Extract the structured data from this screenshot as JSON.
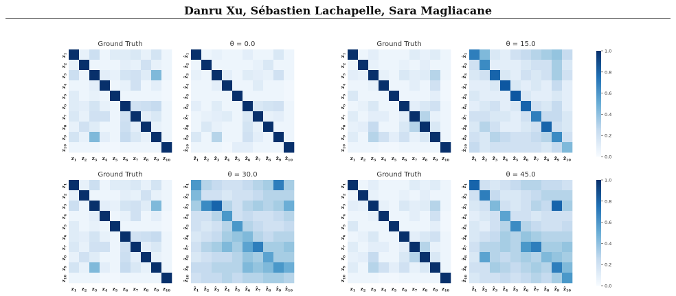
{
  "header": {
    "authors": "Danru Xu,  Sébastien Lachapelle,  Sara Magliacane"
  },
  "colors": {
    "low": "#f7fbff",
    "high": "#08306b",
    "colormap": "Blues"
  },
  "chart_data": [
    {
      "type": "heatmap",
      "title": "Ground Truth",
      "row_labels": [
        "z1",
        "z2",
        "z3",
        "z4",
        "z5",
        "z6",
        "z7",
        "z8",
        "z9",
        "z10"
      ],
      "col_labels": [
        "z1",
        "z2",
        "z3",
        "z4",
        "z5",
        "z6",
        "z7",
        "z8",
        "z9",
        "z10"
      ],
      "vmin": 0,
      "vmax": 1,
      "values": [
        [
          1.0,
          0.08,
          0.22,
          0.05,
          0.12,
          0.12,
          0.15,
          0.08,
          0.18,
          0.05
        ],
        [
          0.08,
          1.0,
          0.05,
          0.05,
          0.05,
          0.1,
          0.08,
          0.2,
          0.08,
          0.05
        ],
        [
          0.22,
          0.05,
          1.0,
          0.1,
          0.08,
          0.18,
          0.2,
          0.12,
          0.45,
          0.05
        ],
        [
          0.05,
          0.05,
          0.1,
          1.0,
          0.05,
          0.08,
          0.2,
          0.05,
          0.1,
          0.03
        ],
        [
          0.12,
          0.05,
          0.08,
          0.05,
          1.0,
          0.05,
          0.05,
          0.05,
          0.05,
          0.03
        ],
        [
          0.12,
          0.1,
          0.18,
          0.08,
          0.05,
          1.0,
          0.2,
          0.22,
          0.25,
          0.05
        ],
        [
          0.15,
          0.08,
          0.2,
          0.2,
          0.05,
          0.2,
          1.0,
          0.1,
          0.15,
          0.05
        ],
        [
          0.08,
          0.2,
          0.12,
          0.05,
          0.05,
          0.22,
          0.1,
          1.0,
          0.08,
          0.05
        ],
        [
          0.18,
          0.08,
          0.45,
          0.1,
          0.05,
          0.25,
          0.15,
          0.08,
          1.0,
          0.05
        ],
        [
          0.05,
          0.05,
          0.05,
          0.03,
          0.03,
          0.05,
          0.05,
          0.05,
          0.05,
          1.0
        ]
      ]
    },
    {
      "type": "heatmap",
      "title": "θ = 0.0",
      "row_labels": [
        "ẑ1",
        "ẑ2",
        "ẑ3",
        "ẑ4",
        "ẑ5",
        "ẑ6",
        "ẑ7",
        "ẑ8",
        "ẑ9",
        "ẑ10"
      ],
      "col_labels": [
        "ẑ1",
        "ẑ2",
        "ẑ3",
        "ẑ4",
        "ẑ5",
        "ẑ6",
        "ẑ7",
        "ẑ8",
        "ẑ9",
        "ẑ10"
      ],
      "vmin": 0,
      "vmax": 1,
      "values": [
        [
          1.0,
          0.05,
          0.08,
          0.05,
          0.05,
          0.1,
          0.05,
          0.05,
          0.15,
          0.05
        ],
        [
          0.05,
          1.0,
          0.05,
          0.05,
          0.05,
          0.05,
          0.08,
          0.15,
          0.05,
          0.05
        ],
        [
          0.08,
          0.05,
          1.0,
          0.1,
          0.05,
          0.12,
          0.1,
          0.08,
          0.2,
          0.05
        ],
        [
          0.05,
          0.05,
          0.1,
          1.0,
          0.05,
          0.05,
          0.12,
          0.05,
          0.05,
          0.03
        ],
        [
          0.05,
          0.05,
          0.05,
          0.05,
          1.0,
          0.05,
          0.05,
          0.05,
          0.05,
          0.03
        ],
        [
          0.1,
          0.05,
          0.12,
          0.05,
          0.05,
          1.0,
          0.15,
          0.18,
          0.2,
          0.05
        ],
        [
          0.05,
          0.08,
          0.1,
          0.12,
          0.05,
          0.15,
          1.0,
          0.08,
          0.1,
          0.05
        ],
        [
          0.05,
          0.15,
          0.08,
          0.05,
          0.05,
          0.18,
          0.08,
          1.0,
          0.05,
          0.05
        ],
        [
          0.15,
          0.05,
          0.3,
          0.05,
          0.05,
          0.2,
          0.1,
          0.05,
          1.0,
          0.05
        ],
        [
          0.05,
          0.05,
          0.05,
          0.03,
          0.1,
          0.1,
          0.05,
          0.05,
          0.05,
          1.0
        ]
      ]
    },
    {
      "type": "heatmap",
      "title": "Ground Truth",
      "row_labels": [
        "z1",
        "z2",
        "z3",
        "z4",
        "z5",
        "z6",
        "z7",
        "z8",
        "z9",
        "z10"
      ],
      "col_labels": [
        "z1",
        "z2",
        "z3",
        "z4",
        "z5",
        "z6",
        "z7",
        "z8",
        "z9",
        "z10"
      ],
      "vmin": 0,
      "vmax": 1,
      "values": [
        [
          1.0,
          0.05,
          0.1,
          0.05,
          0.05,
          0.05,
          0.12,
          0.08,
          0.12,
          0.05
        ],
        [
          0.05,
          1.0,
          0.08,
          0.05,
          0.05,
          0.08,
          0.05,
          0.1,
          0.05,
          0.05
        ],
        [
          0.1,
          0.08,
          1.0,
          0.08,
          0.05,
          0.15,
          0.1,
          0.12,
          0.3,
          0.05
        ],
        [
          0.05,
          0.05,
          0.08,
          1.0,
          0.05,
          0.05,
          0.1,
          0.05,
          0.2,
          0.03
        ],
        [
          0.15,
          0.05,
          0.05,
          0.05,
          1.0,
          0.05,
          0.05,
          0.05,
          0.1,
          0.03
        ],
        [
          0.05,
          0.08,
          0.15,
          0.05,
          0.05,
          1.0,
          0.1,
          0.15,
          0.2,
          0.05
        ],
        [
          0.12,
          0.05,
          0.1,
          0.1,
          0.05,
          0.1,
          1.0,
          0.3,
          0.08,
          0.05
        ],
        [
          0.08,
          0.1,
          0.25,
          0.05,
          0.05,
          0.15,
          0.3,
          1.0,
          0.15,
          0.05
        ],
        [
          0.12,
          0.05,
          0.3,
          0.2,
          0.1,
          0.2,
          0.08,
          0.15,
          1.0,
          0.05
        ],
        [
          0.05,
          0.05,
          0.05,
          0.03,
          0.03,
          0.05,
          0.05,
          0.05,
          0.05,
          1.0
        ]
      ]
    },
    {
      "type": "heatmap",
      "title": "θ = 15.0",
      "row_labels": [
        "ẑ1",
        "ẑ2",
        "ẑ3",
        "ẑ4",
        "ẑ5",
        "ẑ6",
        "ẑ7",
        "ẑ8",
        "ẑ9",
        "ẑ10"
      ],
      "col_labels": [
        "ẑ1",
        "ẑ2",
        "ẑ3",
        "ẑ4",
        "ẑ5",
        "ẑ6",
        "ẑ7",
        "ẑ8",
        "ẑ9",
        "ẑ10"
      ],
      "vmin": 0,
      "vmax": 1,
      "values": [
        [
          0.7,
          0.45,
          0.15,
          0.1,
          0.2,
          0.25,
          0.3,
          0.35,
          0.4,
          0.25
        ],
        [
          0.2,
          0.65,
          0.1,
          0.1,
          0.1,
          0.15,
          0.2,
          0.2,
          0.35,
          0.15
        ],
        [
          0.15,
          0.2,
          0.8,
          0.15,
          0.1,
          0.2,
          0.15,
          0.2,
          0.35,
          0.2
        ],
        [
          0.1,
          0.1,
          0.15,
          0.85,
          0.15,
          0.1,
          0.15,
          0.1,
          0.25,
          0.1
        ],
        [
          0.15,
          0.1,
          0.1,
          0.1,
          0.85,
          0.15,
          0.1,
          0.1,
          0.15,
          0.1
        ],
        [
          0.1,
          0.15,
          0.2,
          0.1,
          0.15,
          0.8,
          0.2,
          0.15,
          0.25,
          0.1
        ],
        [
          0.2,
          0.2,
          0.15,
          0.15,
          0.1,
          0.2,
          0.7,
          0.25,
          0.25,
          0.15
        ],
        [
          0.15,
          0.3,
          0.2,
          0.1,
          0.1,
          0.15,
          0.2,
          0.8,
          0.2,
          0.15
        ],
        [
          0.2,
          0.15,
          0.3,
          0.25,
          0.2,
          0.2,
          0.25,
          0.3,
          0.65,
          0.2
        ],
        [
          0.25,
          0.15,
          0.2,
          0.2,
          0.2,
          0.2,
          0.2,
          0.15,
          0.25,
          0.45
        ]
      ]
    },
    {
      "type": "heatmap",
      "title": "Ground Truth",
      "row_labels": [
        "z1",
        "z2",
        "z3",
        "z4",
        "z5",
        "z6",
        "z7",
        "z8",
        "z9",
        "z10"
      ],
      "col_labels": [
        "z1",
        "z2",
        "z3",
        "z4",
        "z5",
        "z6",
        "z7",
        "z8",
        "z9",
        "z10"
      ],
      "vmin": 0,
      "vmax": 1,
      "values": [
        [
          1.0,
          0.08,
          0.22,
          0.05,
          0.12,
          0.12,
          0.15,
          0.08,
          0.18,
          0.05
        ],
        [
          0.08,
          1.0,
          0.05,
          0.05,
          0.05,
          0.1,
          0.08,
          0.2,
          0.08,
          0.05
        ],
        [
          0.22,
          0.05,
          1.0,
          0.1,
          0.08,
          0.18,
          0.2,
          0.12,
          0.45,
          0.05
        ],
        [
          0.05,
          0.05,
          0.1,
          1.0,
          0.05,
          0.08,
          0.2,
          0.05,
          0.1,
          0.03
        ],
        [
          0.12,
          0.05,
          0.08,
          0.05,
          1.0,
          0.05,
          0.05,
          0.05,
          0.05,
          0.03
        ],
        [
          0.12,
          0.1,
          0.18,
          0.08,
          0.05,
          1.0,
          0.2,
          0.22,
          0.25,
          0.05
        ],
        [
          0.15,
          0.08,
          0.2,
          0.2,
          0.05,
          0.2,
          1.0,
          0.1,
          0.15,
          0.05
        ],
        [
          0.08,
          0.2,
          0.12,
          0.05,
          0.05,
          0.22,
          0.1,
          1.0,
          0.08,
          0.05
        ],
        [
          0.18,
          0.08,
          0.45,
          0.1,
          0.05,
          0.25,
          0.15,
          0.08,
          1.0,
          0.05
        ],
        [
          0.05,
          0.05,
          0.05,
          0.03,
          0.03,
          0.05,
          0.05,
          0.05,
          0.05,
          1.0
        ]
      ]
    },
    {
      "type": "heatmap",
      "title": "θ = 30.0",
      "row_labels": [
        "ẑ1",
        "ẑ2",
        "ẑ3",
        "ẑ4",
        "ẑ5",
        "ẑ6",
        "ẑ7",
        "ẑ8",
        "ẑ9",
        "ẑ10"
      ],
      "col_labels": [
        "ẑ1",
        "ẑ2",
        "ẑ3",
        "ẑ4",
        "ẑ5",
        "ẑ6",
        "ẑ7",
        "ẑ8",
        "ẑ9",
        "ẑ10"
      ],
      "vmin": 0,
      "vmax": 1,
      "values": [
        [
          0.6,
          0.3,
          0.25,
          0.2,
          0.2,
          0.25,
          0.3,
          0.35,
          0.7,
          0.35
        ],
        [
          0.45,
          0.2,
          0.2,
          0.15,
          0.2,
          0.2,
          0.25,
          0.3,
          0.3,
          0.3
        ],
        [
          0.35,
          0.65,
          0.8,
          0.3,
          0.2,
          0.3,
          0.35,
          0.3,
          0.35,
          0.5
        ],
        [
          0.2,
          0.2,
          0.3,
          0.6,
          0.2,
          0.25,
          0.2,
          0.2,
          0.25,
          0.3
        ],
        [
          0.2,
          0.15,
          0.2,
          0.3,
          0.6,
          0.3,
          0.25,
          0.2,
          0.2,
          0.25
        ],
        [
          0.15,
          0.2,
          0.25,
          0.35,
          0.4,
          0.45,
          0.3,
          0.25,
          0.3,
          0.3
        ],
        [
          0.2,
          0.3,
          0.35,
          0.45,
          0.35,
          0.55,
          0.7,
          0.35,
          0.35,
          0.4
        ],
        [
          0.15,
          0.2,
          0.25,
          0.25,
          0.3,
          0.4,
          0.35,
          0.55,
          0.35,
          0.35
        ],
        [
          0.25,
          0.25,
          0.3,
          0.3,
          0.3,
          0.45,
          0.4,
          0.45,
          0.6,
          0.5
        ],
        [
          0.2,
          0.25,
          0.25,
          0.3,
          0.25,
          0.3,
          0.3,
          0.35,
          0.35,
          0.3
        ]
      ]
    },
    {
      "type": "heatmap",
      "title": "Ground Truth",
      "row_labels": [
        "z1",
        "z2",
        "z3",
        "z4",
        "z5",
        "z6",
        "z7",
        "z8",
        "z9",
        "z10"
      ],
      "col_labels": [
        "z1",
        "z2",
        "z3",
        "z4",
        "z5",
        "z6",
        "z7",
        "z8",
        "z9",
        "z10"
      ],
      "vmin": 0,
      "vmax": 1,
      "values": [
        [
          1.0,
          0.05,
          0.1,
          0.05,
          0.05,
          0.05,
          0.12,
          0.08,
          0.12,
          0.05
        ],
        [
          0.05,
          1.0,
          0.08,
          0.05,
          0.05,
          0.08,
          0.05,
          0.1,
          0.05,
          0.05
        ],
        [
          0.1,
          0.08,
          1.0,
          0.08,
          0.05,
          0.15,
          0.1,
          0.12,
          0.3,
          0.05
        ],
        [
          0.05,
          0.05,
          0.08,
          1.0,
          0.05,
          0.05,
          0.1,
          0.05,
          0.2,
          0.03
        ],
        [
          0.15,
          0.05,
          0.05,
          0.05,
          1.0,
          0.05,
          0.05,
          0.05,
          0.1,
          0.03
        ],
        [
          0.05,
          0.08,
          0.15,
          0.05,
          0.05,
          1.0,
          0.1,
          0.15,
          0.2,
          0.05
        ],
        [
          0.12,
          0.05,
          0.1,
          0.1,
          0.05,
          0.1,
          1.0,
          0.3,
          0.08,
          0.05
        ],
        [
          0.08,
          0.1,
          0.25,
          0.05,
          0.05,
          0.15,
          0.3,
          1.0,
          0.15,
          0.05
        ],
        [
          0.12,
          0.05,
          0.3,
          0.2,
          0.1,
          0.2,
          0.08,
          0.15,
          1.0,
          0.05
        ],
        [
          0.05,
          0.05,
          0.05,
          0.03,
          0.03,
          0.05,
          0.05,
          0.05,
          0.05,
          1.0
        ]
      ]
    },
    {
      "type": "heatmap",
      "title": "θ = 45.0",
      "row_labels": [
        "ẑ1",
        "ẑ2",
        "ẑ3",
        "ẑ4",
        "ẑ5",
        "ẑ6",
        "ẑ7",
        "ẑ8",
        "ẑ9",
        "ẑ10"
      ],
      "col_labels": [
        "ẑ1",
        "ẑ2",
        "ẑ3",
        "ẑ4",
        "ẑ5",
        "ẑ6",
        "ẑ7",
        "ẑ8",
        "ẑ9",
        "ẑ10"
      ],
      "vmin": 0,
      "vmax": 1,
      "values": [
        [
          0.8,
          0.2,
          0.15,
          0.2,
          0.25,
          0.3,
          0.3,
          0.25,
          0.25,
          0.2
        ],
        [
          0.2,
          0.7,
          0.25,
          0.15,
          0.15,
          0.2,
          0.25,
          0.3,
          0.3,
          0.3
        ],
        [
          0.15,
          0.2,
          0.45,
          0.2,
          0.15,
          0.2,
          0.3,
          0.25,
          0.8,
          0.35
        ],
        [
          0.1,
          0.15,
          0.2,
          0.55,
          0.2,
          0.2,
          0.15,
          0.2,
          0.2,
          0.2
        ],
        [
          0.15,
          0.1,
          0.2,
          0.3,
          0.65,
          0.3,
          0.25,
          0.2,
          0.2,
          0.25
        ],
        [
          0.15,
          0.2,
          0.25,
          0.35,
          0.3,
          0.4,
          0.35,
          0.3,
          0.3,
          0.3
        ],
        [
          0.2,
          0.3,
          0.3,
          0.35,
          0.3,
          0.6,
          0.7,
          0.35,
          0.35,
          0.4
        ],
        [
          0.15,
          0.55,
          0.3,
          0.25,
          0.3,
          0.35,
          0.3,
          0.45,
          0.4,
          0.35
        ],
        [
          0.2,
          0.2,
          0.35,
          0.3,
          0.25,
          0.3,
          0.35,
          0.3,
          0.7,
          0.45
        ],
        [
          0.15,
          0.2,
          0.2,
          0.25,
          0.2,
          0.25,
          0.3,
          0.25,
          0.35,
          0.6
        ]
      ]
    }
  ],
  "colorbars": [
    {
      "ticks": [
        "0.0",
        "0.2",
        "0.4",
        "0.6",
        "0.8",
        "1.0"
      ]
    },
    {
      "ticks": [
        "0.0",
        "0.2",
        "0.4",
        "0.6",
        "0.8",
        "1.0"
      ]
    }
  ]
}
